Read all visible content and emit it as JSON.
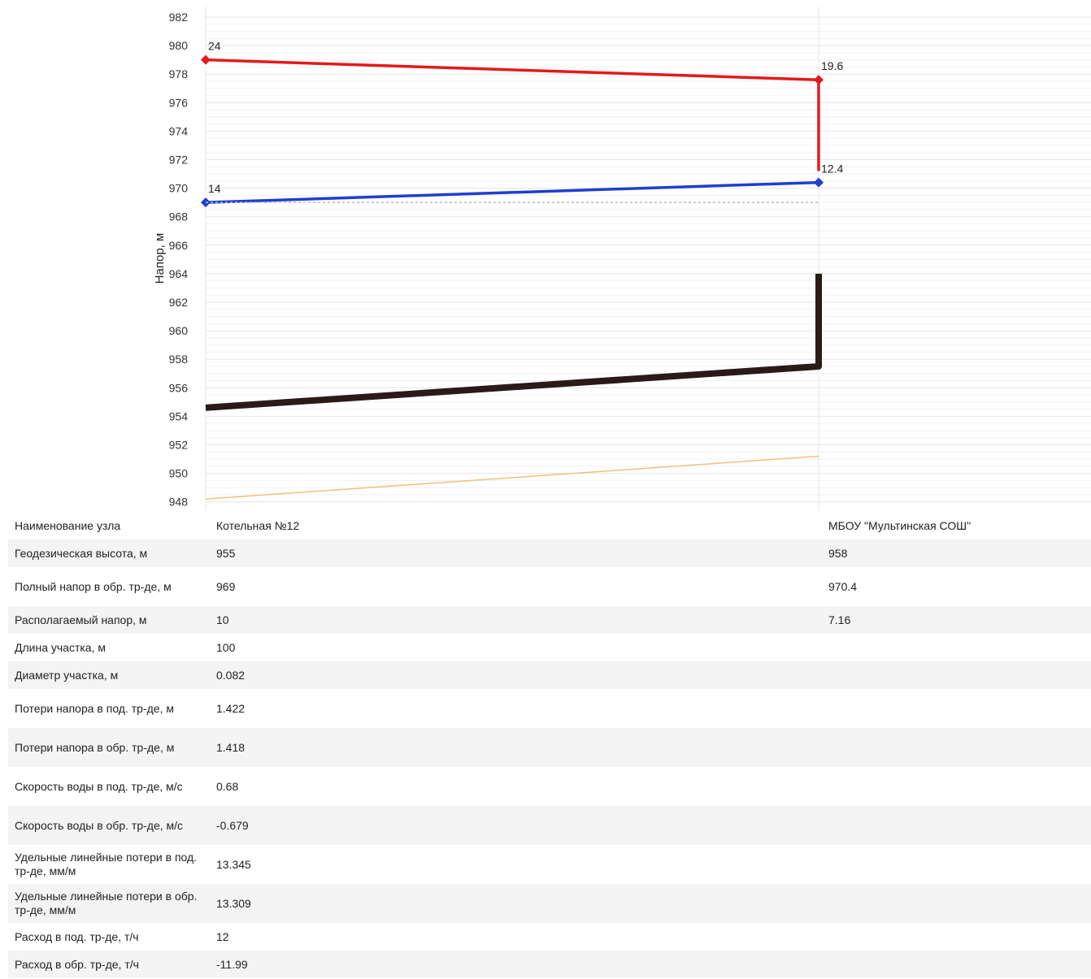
{
  "chart_data": {
    "type": "line",
    "ylabel": "Напор, м",
    "yticks": [
      948,
      950,
      952,
      954,
      956,
      958,
      960,
      962,
      964,
      966,
      968,
      970,
      972,
      974,
      976,
      978,
      980,
      982
    ],
    "ylim": [
      947.5,
      982.5
    ],
    "grid": true,
    "nodes": [
      "Котельная №12",
      "МБОУ \"Мультинская СОШ\""
    ],
    "series": [
      {
        "key": "supply",
        "color": "#e31a1c",
        "x": [
          0,
          1,
          1
        ],
        "y": [
          979,
          977.6,
          971.2
        ],
        "markers": [
          0,
          1
        ]
      },
      {
        "key": "return",
        "color": "#1f3fd1",
        "x": [
          0,
          1
        ],
        "y": [
          969,
          970.4
        ],
        "markers": [
          0,
          1
        ]
      },
      {
        "key": "static",
        "color": "#b8bcc4",
        "x": [
          0,
          1
        ],
        "y": [
          969,
          969
        ],
        "dashed": true
      },
      {
        "key": "ground",
        "color": "#2a1a1a",
        "x": [
          0,
          1,
          1
        ],
        "y": [
          954.6,
          957.5,
          964
        ],
        "width": 8
      },
      {
        "key": "depth",
        "color": "#f0c080",
        "x": [
          0,
          1
        ],
        "y": [
          948.2,
          951.2
        ]
      }
    ],
    "annotations": [
      {
        "text": "24",
        "x": 0,
        "y": 979,
        "color": "#e31a1c"
      },
      {
        "text": "19.6",
        "x": 1,
        "y": 977.6,
        "color": "#e31a1c"
      },
      {
        "text": "14",
        "x": 0,
        "y": 969,
        "color": "#1f3fd1"
      },
      {
        "text": "12.4",
        "x": 1,
        "y": 970.4,
        "color": "#1f3fd1"
      }
    ]
  },
  "table": {
    "rows": [
      {
        "label": "Наименование узла",
        "v1": "Котельная №12",
        "v2": "МБОУ \"Мультинская СОШ\""
      },
      {
        "label": "Геодезическая высота, м",
        "v1": "955",
        "v2": "958"
      },
      {
        "label": "Полный напор в обр. тр-де, м",
        "v1": "969",
        "v2": "970.4"
      },
      {
        "label": "Располагаемый напор, м",
        "v1": "10",
        "v2": "7.16"
      },
      {
        "label": "Длина участка, м",
        "v1": "100",
        "v2": ""
      },
      {
        "label": "Диаметр участка, м",
        "v1": "0.082",
        "v2": ""
      },
      {
        "label": "Потери напора в под. тр-де, м",
        "v1": "1.422",
        "v2": ""
      },
      {
        "label": "Потери напора в обр. тр-де, м",
        "v1": "1.418",
        "v2": ""
      },
      {
        "label": "Скорость воды в под. тр-де, м/с",
        "v1": "0.68",
        "v2": ""
      },
      {
        "label": "Скорость воды в обр. тр-де, м/с",
        "v1": "-0.679",
        "v2": ""
      },
      {
        "label": "Удельные линейные потери в под. тр-де, мм/м",
        "v1": "13.345",
        "v2": ""
      },
      {
        "label": "Удельные линейные потери в обр. тр-де, мм/м",
        "v1": "13.309",
        "v2": ""
      },
      {
        "label": "Расход в под. тр-де, т/ч",
        "v1": "12",
        "v2": ""
      },
      {
        "label": "Расход в обр. тр-де, т/ч",
        "v1": "-11.99",
        "v2": ""
      }
    ]
  }
}
